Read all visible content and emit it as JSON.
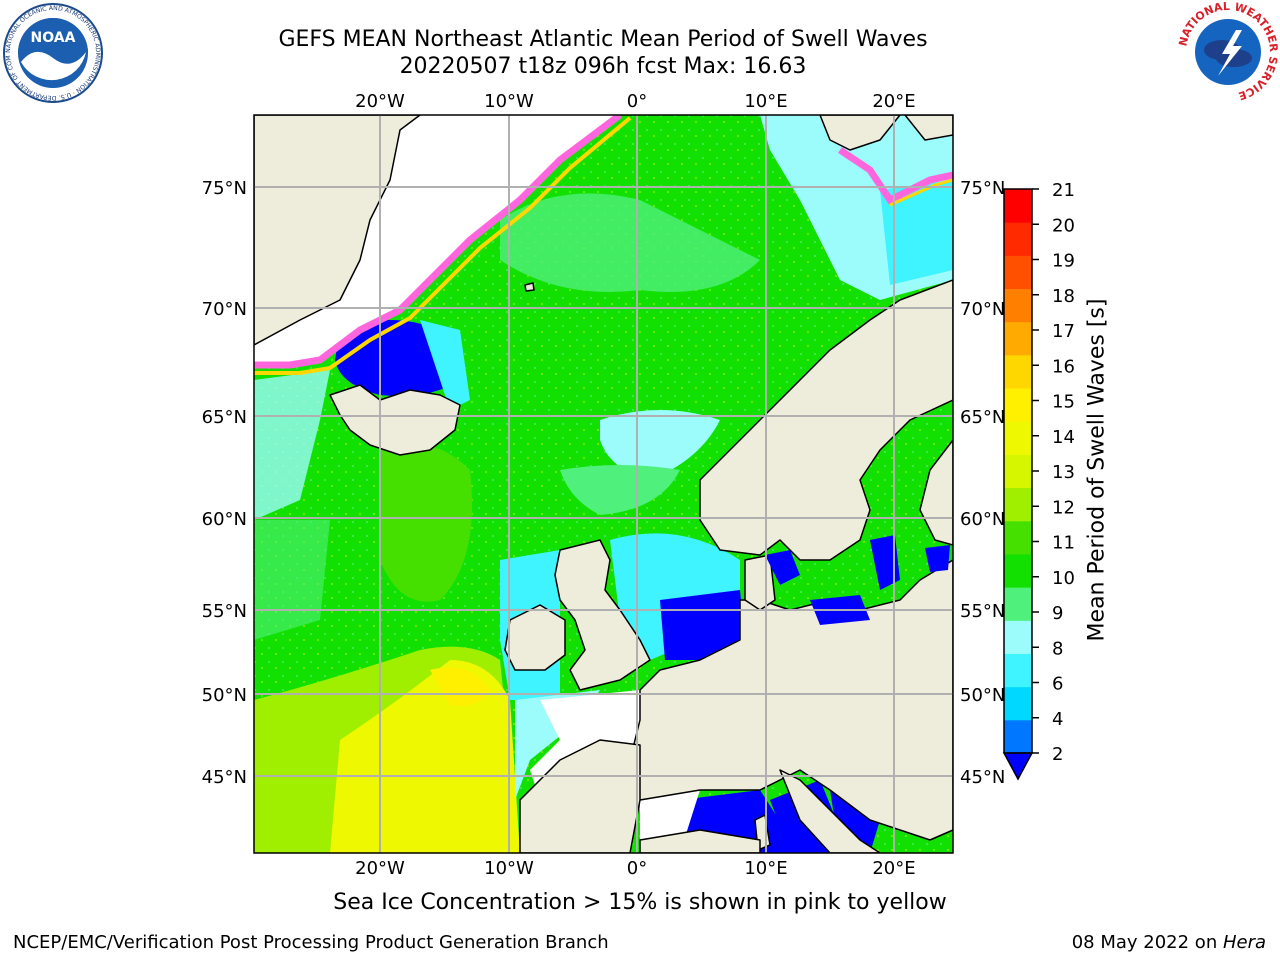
{
  "header": {
    "title_line1": "GEFS MEAN Northeast Atlantic Mean Period of Swell Waves",
    "title_line2": "20220507 t18z 096h fcst   Max: 16.63"
  },
  "map": {
    "lon_labels": [
      "20°W",
      "10°W",
      "0°",
      "10°E",
      "20°E"
    ],
    "lat_labels": [
      "75°N",
      "70°N",
      "65°N",
      "60°N",
      "55°N",
      "50°N",
      "45°N"
    ],
    "land_color": "#eeeddc",
    "ocean_base_color": "#12e000"
  },
  "colorbar": {
    "title": "Mean Period of Swell Waves [s]",
    "tick_labels": [
      "2",
      "4",
      "6",
      "8",
      "9",
      "10",
      "11",
      "12",
      "13",
      "14",
      "15",
      "16",
      "17",
      "18",
      "19",
      "20",
      "21"
    ],
    "colors": [
      "#0077ff",
      "#00d8ff",
      "#3ff3ff",
      "#9cfcfc",
      "#4ff07c",
      "#12e000",
      "#46e000",
      "#a0ee00",
      "#d6f600",
      "#eef800",
      "#fff000",
      "#ffd700",
      "#ffaa00",
      "#ff7f00",
      "#ff5000",
      "#ff2a00",
      "#ff0000"
    ],
    "under_color": "#0000ff"
  },
  "logos": {
    "noaa_text": "NOAA",
    "noaa_ring": "NATIONAL OCEANIC AND ATMOSPHERIC ADMINISTRATION · U.S. DEPARTMENT OF COMMERCE",
    "nws_ring": "NATIONAL WEATHER SERVICE"
  },
  "note": "Sea Ice Concentration > 15% is shown in pink to yellow",
  "footer": {
    "left": "NCEP/EMC/Verification Post Processing Product Generation Branch",
    "right_prefix": "08 May 2022 on ",
    "right_host": "Hera"
  }
}
